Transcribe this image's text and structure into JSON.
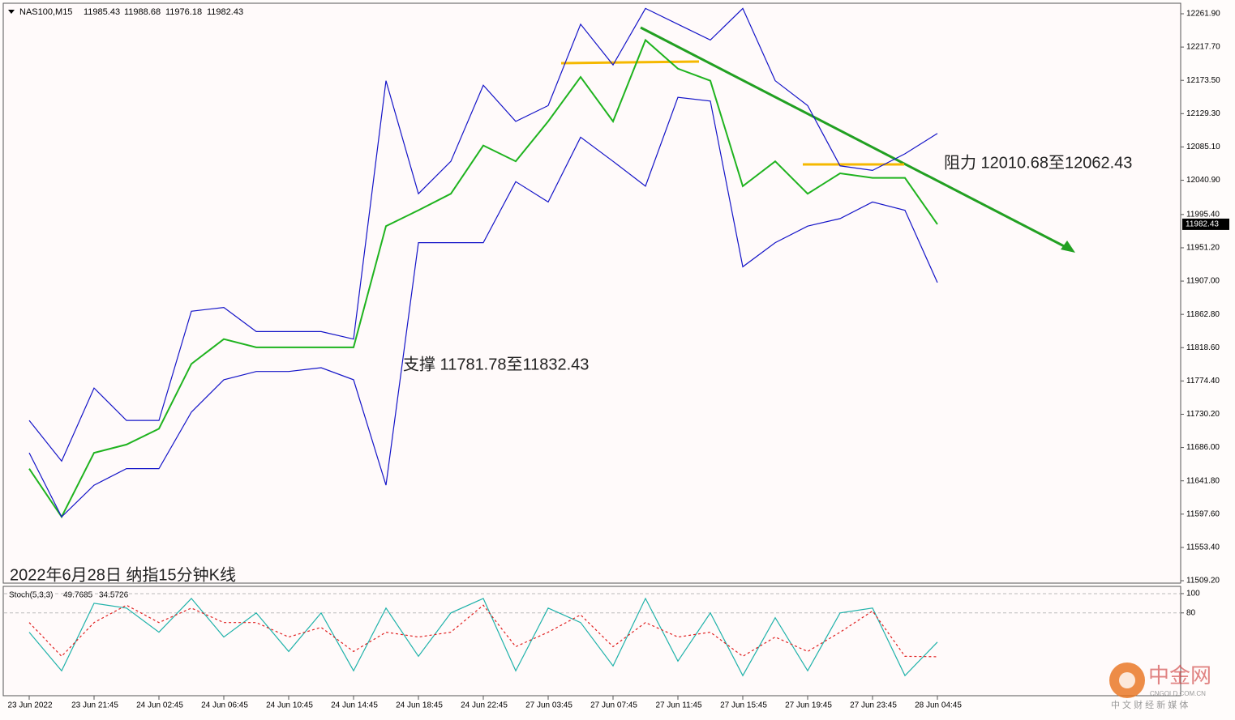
{
  "chart_data": [
    {
      "type": "line",
      "title": "NAS100,M15",
      "ohlc": [
        11985.43,
        11988.68,
        11976.18,
        11982.43
      ],
      "last_price": 11982.43,
      "annotations": [
        "阻力 12010.68至12062.43",
        "支撑 11781.78至11832.43",
        "2022年6月28日 纳指15分钟K线"
      ],
      "watermark": [
        "中金网",
        "CNGOLD.COM.CN",
        "中 文 财 经 新 媒 体"
      ],
      "categories": [
        "23 Jun 2022",
        null,
        "23 Jun 21:45",
        null,
        "24 Jun 02:45",
        null,
        "24 Jun 06:45",
        null,
        "24 Jun 10:45",
        null,
        "24 Jun 14:45",
        null,
        "24 Jun 18:45",
        null,
        "24 Jun 22:45",
        null,
        "27 Jun 03:45",
        null,
        "27 Jun 07:45",
        null,
        "27 Jun 11:45",
        null,
        "27 Jun 15:45",
        null,
        "27 Jun 19:45",
        null,
        "27 Jun 23:45",
        null,
        "28 Jun 04:45"
      ],
      "series": [
        {
          "color": "#1fb31f",
          "values": [
            11658,
            11594,
            11679,
            11690,
            11711,
            11797,
            11830,
            11819,
            11819,
            11819,
            11819,
            11980,
            12001,
            12023,
            12087,
            12066,
            12119,
            12178,
            12119,
            12227,
            12189,
            12173,
            12033,
            12066,
            12023,
            12050,
            12044,
            12044,
            11982.43
          ]
        },
        {
          "color": "#1414c8",
          "values": [
            11722,
            11668,
            11765,
            11722,
            11722,
            11867,
            11872,
            11840,
            11840,
            11840,
            11830,
            12173,
            12023,
            12066,
            12167,
            12119,
            12140,
            12248,
            12194,
            12269,
            12248,
            12227,
            12269,
            12173,
            12140,
            12060,
            12054,
            12076,
            12103
          ]
        },
        {
          "color": "#1414c8",
          "values": [
            11679,
            11594,
            11636,
            11658,
            11658,
            11733,
            11776,
            11787,
            11787,
            11792,
            11776,
            11636,
            11958,
            11958,
            11958,
            12039,
            12012,
            12098,
            12066,
            12033,
            12151,
            12146,
            11926,
            11958,
            11980,
            11990,
            12012,
            12001,
            11905
          ]
        }
      ],
      "ylim": [
        11506,
        12274.8
      ],
      "yticks": [
        {
          "value": 12261.9,
          "label": "12261.90"
        },
        {
          "value": 12217.7,
          "label": "12217.70"
        },
        {
          "value": 12173.5,
          "label": "12173.50"
        },
        {
          "value": 12129.3,
          "label": "12129.30"
        },
        {
          "value": 12085.1,
          "label": "12085.10"
        },
        {
          "value": 12040.9,
          "label": "12040.90"
        },
        {
          "value": 11995.4,
          "label": "11995.40"
        },
        {
          "value": 11951.2,
          "label": "11951.20"
        },
        {
          "value": 11907,
          "label": "11907.00"
        },
        {
          "value": 11862.8,
          "label": "11862.80"
        },
        {
          "value": 11818.6,
          "label": "11818.60"
        },
        {
          "value": 11774.4,
          "label": "11774.40"
        },
        {
          "value": 11730.2,
          "label": "11730.20"
        },
        {
          "value": 11686,
          "label": "11686.00"
        },
        {
          "value": 11641.8,
          "label": "11641.80"
        },
        {
          "value": 11597.6,
          "label": "11597.60"
        },
        {
          "value": 11553.4,
          "label": "11553.40"
        },
        {
          "value": 11509.2,
          "label": "11509.20"
        }
      ]
    },
    {
      "type": "line",
      "title": "Stoch(5,3,3)",
      "indicator_values": [
        49.7685,
        34.5726
      ],
      "series": [
        {
          "color": "#20b2aa",
          "values": [
            60,
            20,
            90,
            85,
            60,
            95,
            55,
            80,
            40,
            80,
            20,
            85,
            35,
            80,
            95,
            20,
            85,
            70,
            25,
            95,
            30,
            80,
            15,
            75,
            20,
            80,
            85,
            15,
            49.7685
          ]
        },
        {
          "color": "#e02020",
          "values": [
            70,
            35,
            70,
            88,
            70,
            85,
            70,
            70,
            55,
            65,
            40,
            60,
            55,
            60,
            88,
            45,
            60,
            78,
            45,
            70,
            55,
            60,
            35,
            55,
            40,
            60,
            82,
            35,
            34.5726
          ]
        }
      ],
      "ylim": [
        -5,
        105
      ],
      "yticks": [
        100,
        80
      ]
    }
  ]
}
